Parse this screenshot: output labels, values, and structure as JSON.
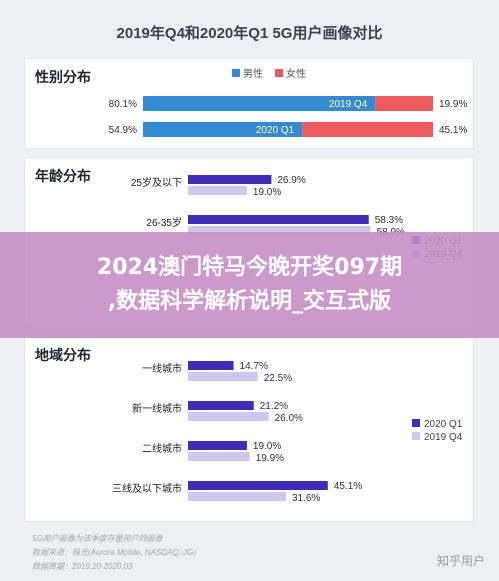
{
  "title": "2019年Q4和2020年Q1 5G用户画像对比",
  "banner": {
    "line1": "2024澳门特马今晚开奖097期",
    "line2": ",数据科学解析说明_交互式版"
  },
  "footer": {
    "line1": "5G用户画像为该季度存量用户的画像",
    "line2": "数据来源：极光(Aurora Mobile, NASDAQ: JG)",
    "line3": "数据周期：2019.10-2020.03"
  },
  "watermark": "知乎用户",
  "colors": {
    "male": "#3589d0",
    "female": "#ec5b60",
    "q1": "#3d2fb5",
    "q4": "#cfc8ee"
  },
  "chart_data": [
    {
      "type": "bar",
      "title": "性别分布",
      "legend": [
        "男性",
        "女性"
      ],
      "legend_position": "top",
      "categories": [
        "2019 Q4",
        "2020 Q1"
      ],
      "series": [
        {
          "name": "男性",
          "values": [
            80.1,
            54.9
          ]
        },
        {
          "name": "女性",
          "values": [
            19.9,
            45.1
          ]
        }
      ],
      "value_labels": {
        "男性": [
          "80.1%",
          "54.9%"
        ],
        "女性": [
          "19.9%",
          "45.1%"
        ]
      }
    },
    {
      "type": "bar",
      "title": "年龄分布",
      "legend": [
        "2020 Q1",
        "2019 Q4"
      ],
      "legend_position": "right",
      "categories": [
        "25岁及以下",
        "26-35岁"
      ],
      "series": [
        {
          "name": "2020 Q1",
          "values": [
            26.9,
            58.3
          ]
        },
        {
          "name": "2019 Q4",
          "values": [
            19.0,
            58.9
          ]
        }
      ],
      "value_labels": {
        "2020 Q1": [
          "26.9%",
          "58.3%"
        ],
        "2019 Q4": [
          "19.0%",
          "58.9%"
        ]
      }
    },
    {
      "type": "bar",
      "title": "地域分布",
      "legend": [
        "2020 Q1",
        "2019 Q4"
      ],
      "legend_position": "bottom-right",
      "categories": [
        "一线城市",
        "新一线城市",
        "二线城市",
        "三线及以下城市"
      ],
      "series": [
        {
          "name": "2020 Q1",
          "values": [
            14.7,
            21.2,
            19.0,
            45.1
          ]
        },
        {
          "name": "2019 Q4",
          "values": [
            22.5,
            26.0,
            19.9,
            31.6
          ]
        }
      ],
      "value_labels": {
        "2020 Q1": [
          "14.7%",
          "21.2%",
          "19.0%",
          "45.1%"
        ],
        "2019 Q4": [
          "22.5%",
          "26.0%",
          "19.9%",
          "31.6%"
        ]
      }
    }
  ]
}
